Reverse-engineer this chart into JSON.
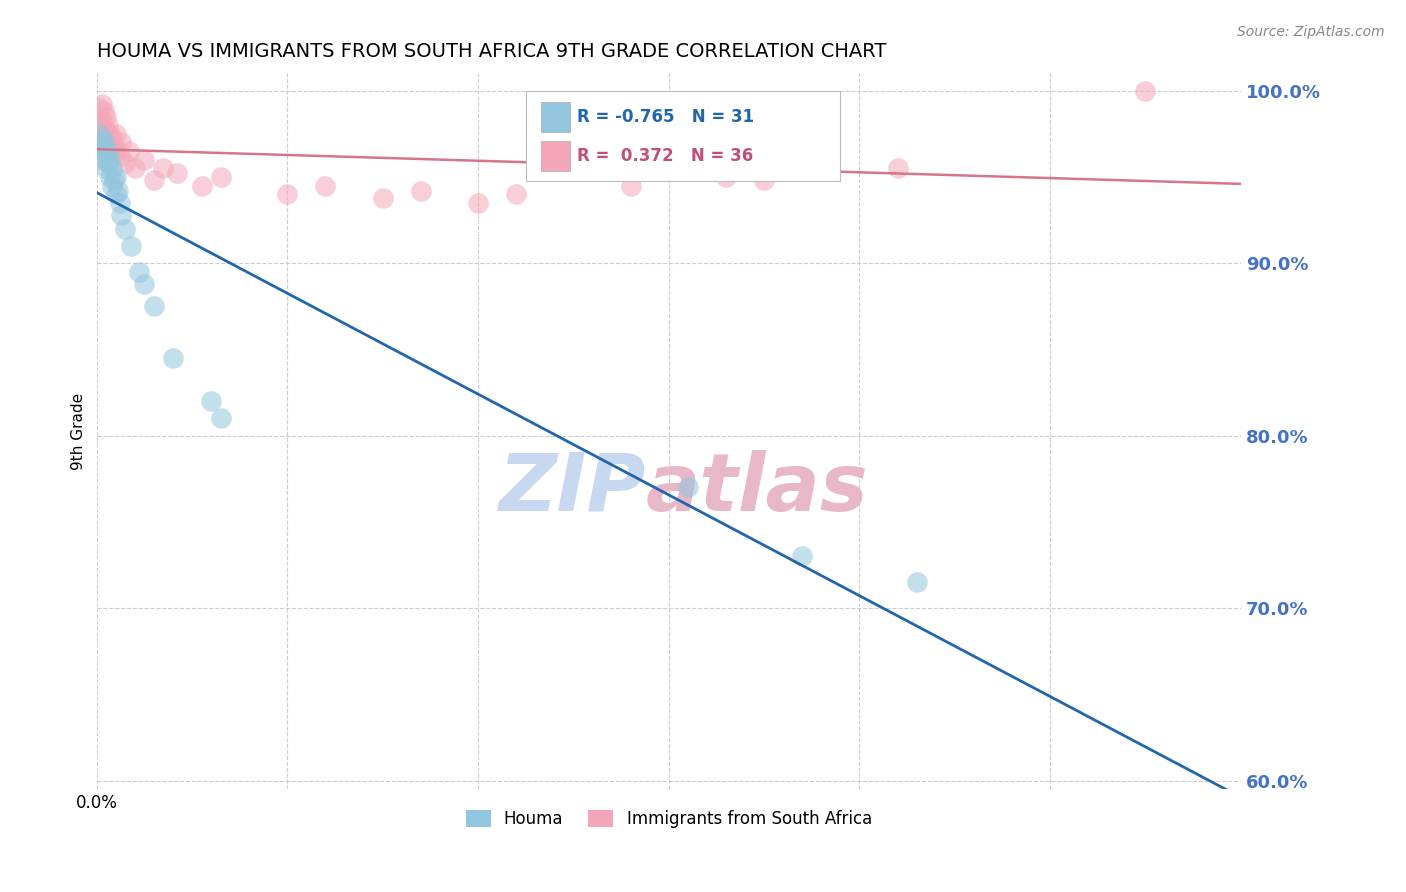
{
  "title": "HOUMA VS IMMIGRANTS FROM SOUTH AFRICA 9TH GRADE CORRELATION CHART",
  "source_text": "Source: ZipAtlas.com",
  "ylabel": "9th Grade",
  "legend_label1": "Houma",
  "legend_label2": "Immigrants from South Africa",
  "R1": -0.765,
  "N1": 31,
  "R2": 0.372,
  "N2": 36,
  "color1": "#92c5de",
  "color2": "#f4a6b8",
  "trend1_color": "#2166ac",
  "trend2_color": "#d6758a",
  "watermark_zip_color": "#c8d8f0",
  "watermark_atlas_color": "#e8b8c8",
  "xmin": 0.0,
  "xmax": 0.6,
  "ymin": 0.595,
  "ymax": 1.01,
  "yticks": [
    0.6,
    0.7,
    0.8,
    0.9,
    1.0
  ],
  "ytick_labels": [
    "60.0%",
    "70.0%",
    "80.0%",
    "90.0%",
    "100.0%"
  ],
  "xticks": [
    0.0,
    0.1,
    0.2,
    0.3,
    0.4,
    0.5
  ],
  "blue_points_x": [
    0.001,
    0.002,
    0.003,
    0.003,
    0.004,
    0.004,
    0.005,
    0.005,
    0.006,
    0.006,
    0.007,
    0.007,
    0.008,
    0.008,
    0.009,
    0.01,
    0.01,
    0.011,
    0.012,
    0.013,
    0.015,
    0.018,
    0.022,
    0.025,
    0.03,
    0.04,
    0.06,
    0.065,
    0.31,
    0.37,
    0.43
  ],
  "blue_points_y": [
    0.975,
    0.968,
    0.965,
    0.972,
    0.96,
    0.97,
    0.955,
    0.963,
    0.958,
    0.965,
    0.95,
    0.96,
    0.945,
    0.955,
    0.948,
    0.94,
    0.95,
    0.942,
    0.935,
    0.928,
    0.92,
    0.91,
    0.895,
    0.888,
    0.875,
    0.845,
    0.82,
    0.81,
    0.77,
    0.73,
    0.715
  ],
  "pink_points_x": [
    0.001,
    0.002,
    0.003,
    0.003,
    0.004,
    0.004,
    0.005,
    0.005,
    0.006,
    0.007,
    0.008,
    0.009,
    0.01,
    0.01,
    0.012,
    0.013,
    0.015,
    0.017,
    0.02,
    0.025,
    0.03,
    0.035,
    0.042,
    0.055,
    0.065,
    0.1,
    0.12,
    0.15,
    0.17,
    0.2,
    0.22,
    0.28,
    0.33,
    0.35,
    0.42,
    0.55
  ],
  "pink_points_y": [
    0.99,
    0.985,
    0.982,
    0.992,
    0.978,
    0.988,
    0.975,
    0.985,
    0.98,
    0.975,
    0.972,
    0.968,
    0.965,
    0.975,
    0.962,
    0.97,
    0.958,
    0.965,
    0.955,
    0.96,
    0.948,
    0.955,
    0.952,
    0.945,
    0.95,
    0.94,
    0.945,
    0.938,
    0.942,
    0.935,
    0.94,
    0.945,
    0.95,
    0.948,
    0.955,
    1.0
  ]
}
